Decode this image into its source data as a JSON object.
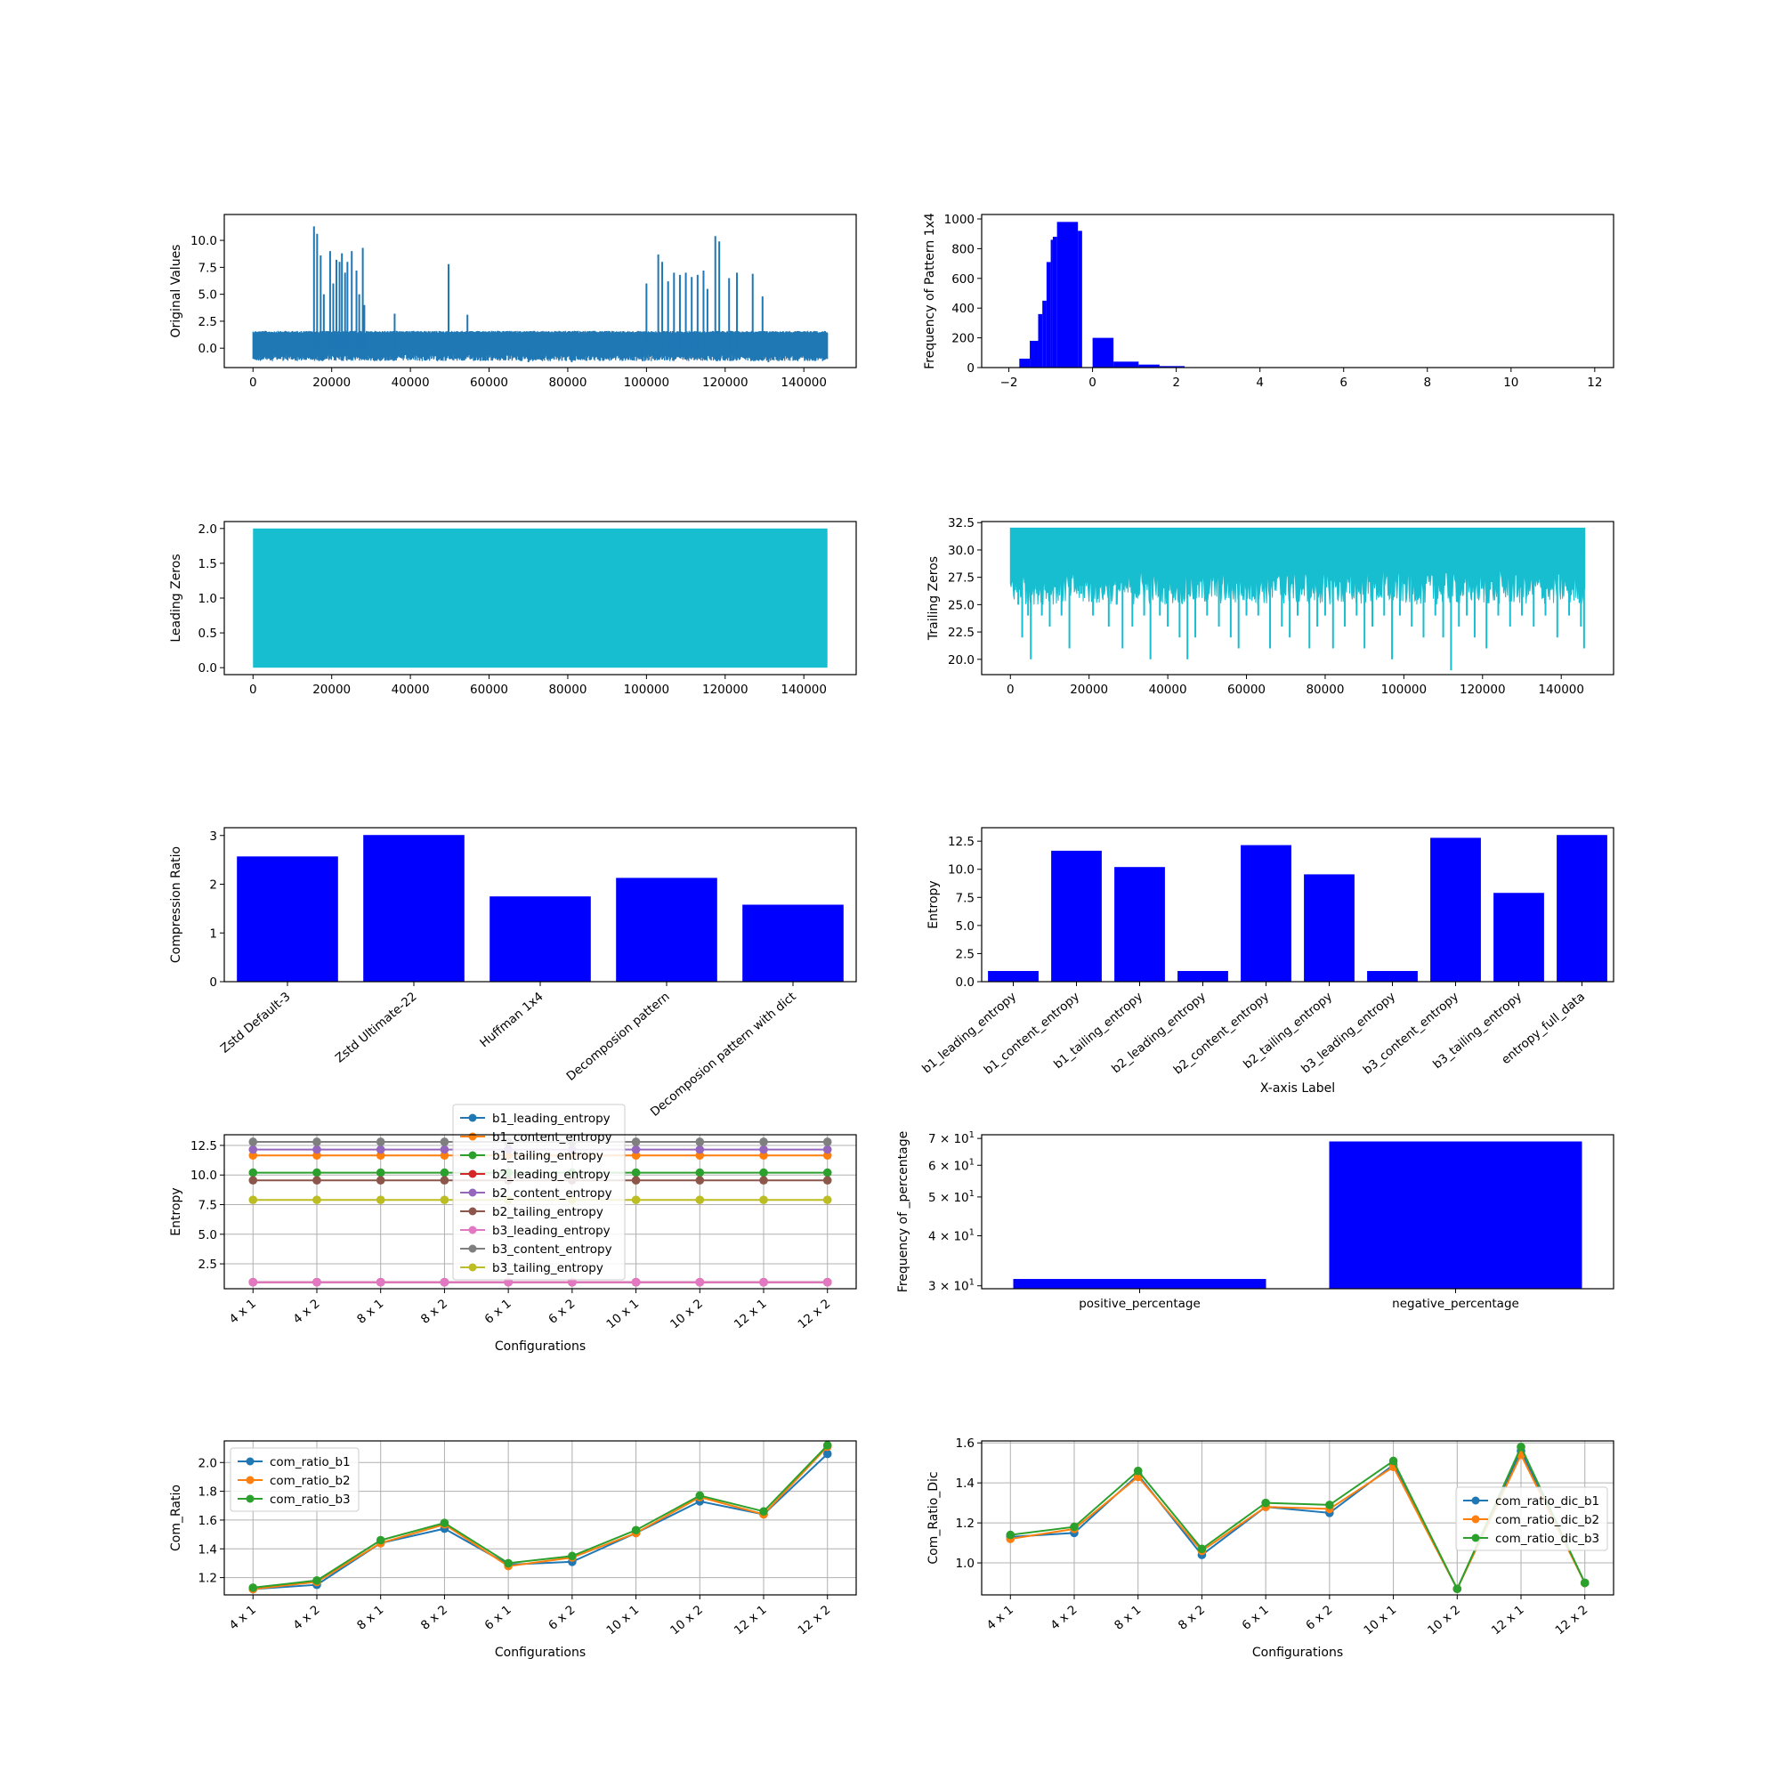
{
  "chart_data": [
    {
      "id": "orig",
      "type": "line",
      "ylabel": "Original Values",
      "xlabel": "",
      "xlim": [
        -7300,
        153300
      ],
      "ylim": [
        -1.8,
        12.4
      ],
      "xticks": [
        0,
        20000,
        40000,
        60000,
        80000,
        100000,
        120000,
        140000
      ],
      "yticks": [
        0.0,
        2.5,
        5.0,
        7.5,
        10.0
      ],
      "ytick_labels": [
        "0.0",
        "2.5",
        "5.0",
        "7.5",
        "10.0"
      ],
      "grid": false,
      "color": "#1f77b4",
      "n_points": 146000,
      "band": [
        -0.6,
        1.6
      ],
      "spikes": [
        [
          15500,
          11.3
        ],
        [
          16300,
          10.6
        ],
        [
          17200,
          8.6
        ],
        [
          18000,
          5.0
        ],
        [
          19600,
          9.0
        ],
        [
          20400,
          6.0
        ],
        [
          21200,
          8.2
        ],
        [
          22000,
          8.0
        ],
        [
          22600,
          8.8
        ],
        [
          23400,
          7.0
        ],
        [
          24000,
          8.0
        ],
        [
          25100,
          9.0
        ],
        [
          26300,
          7.2
        ],
        [
          27000,
          5.0
        ],
        [
          27900,
          9.3
        ],
        [
          28300,
          4.0
        ],
        [
          49700,
          7.8
        ],
        [
          36000,
          3.2
        ],
        [
          54500,
          3.1
        ],
        [
          100000,
          6.0
        ],
        [
          103000,
          8.7
        ],
        [
          104000,
          8.0
        ],
        [
          105500,
          6.2
        ],
        [
          107000,
          7.0
        ],
        [
          108500,
          6.8
        ],
        [
          110000,
          7.0
        ],
        [
          111500,
          6.6
        ],
        [
          113000,
          6.8
        ],
        [
          114500,
          7.2
        ],
        [
          115500,
          5.5
        ],
        [
          117500,
          10.4
        ],
        [
          118500,
          9.9
        ],
        [
          121000,
          6.5
        ],
        [
          123000,
          7.0
        ],
        [
          127000,
          6.9
        ],
        [
          129500,
          4.8
        ]
      ],
      "dips": [
        [
          70000,
          -1.3
        ],
        [
          81000,
          -1.3
        ],
        [
          99000,
          -1.2
        ],
        [
          118000,
          -1.2
        ],
        [
          131000,
          -1.3
        ],
        [
          145500,
          -1.0
        ]
      ]
    },
    {
      "id": "freq",
      "type": "bar",
      "ylabel": "Frequency of Pattern 1x4",
      "xlabel": "",
      "xlim": [
        -2.65,
        12.45
      ],
      "ylim": [
        0,
        1030
      ],
      "xticks": [
        -2,
        0,
        2,
        4,
        6,
        8,
        10,
        12
      ],
      "yticks": [
        0,
        200,
        400,
        600,
        800,
        1000
      ],
      "grid": false,
      "color": "#0000ff",
      "bins": [
        [
          -1.75,
          -1.5,
          60
        ],
        [
          -1.5,
          -1.3,
          180
        ],
        [
          -1.3,
          -1.2,
          360
        ],
        [
          -1.2,
          -1.1,
          450
        ],
        [
          -1.1,
          -1.0,
          710
        ],
        [
          -1.0,
          -0.95,
          860
        ],
        [
          -0.95,
          -0.85,
          880
        ],
        [
          -0.85,
          -0.35,
          980
        ],
        [
          -0.35,
          -0.25,
          920
        ],
        [
          -0.25,
          0.0,
          0
        ],
        [
          0.0,
          0.5,
          200
        ],
        [
          0.5,
          1.1,
          40
        ],
        [
          1.1,
          1.6,
          20
        ],
        [
          1.6,
          2.2,
          10
        ]
      ]
    },
    {
      "id": "lead",
      "type": "area",
      "ylabel": "Leading Zeros",
      "xlabel": "",
      "xlim": [
        -7300,
        153300
      ],
      "ylim": [
        -0.1,
        2.1
      ],
      "xticks": [
        0,
        20000,
        40000,
        60000,
        80000,
        100000,
        120000,
        140000
      ],
      "yticks": [
        0.0,
        0.5,
        1.0,
        1.5,
        2.0
      ],
      "ytick_labels": [
        "0.0",
        "0.5",
        "1.0",
        "1.5",
        "2.0"
      ],
      "grid": false,
      "color": "#17becf",
      "x_range": [
        0,
        146000
      ],
      "y_fill": [
        0,
        2
      ]
    },
    {
      "id": "trail",
      "type": "line",
      "ylabel": "Trailing Zeros",
      "xlabel": "",
      "xlim": [
        -7300,
        153300
      ],
      "ylim": [
        18.6,
        32.6
      ],
      "xticks": [
        0,
        20000,
        40000,
        60000,
        80000,
        100000,
        120000,
        140000
      ],
      "yticks": [
        20.0,
        22.5,
        25.0,
        27.5,
        30.0,
        32.5
      ],
      "ytick_labels": [
        "20.0",
        "22.5",
        "25.0",
        "27.5",
        "30.0",
        "32.5"
      ],
      "grid": false,
      "color": "#17becf",
      "top": 32,
      "dips": [
        [
          500,
          29
        ],
        [
          1000,
          27
        ],
        [
          2000,
          25
        ],
        [
          3000,
          22
        ],
        [
          4500,
          24
        ],
        [
          5200,
          20
        ],
        [
          8000,
          24
        ],
        [
          10000,
          23
        ],
        [
          13000,
          24
        ],
        [
          15000,
          21
        ],
        [
          18000,
          26
        ],
        [
          21000,
          24
        ],
        [
          25000,
          23
        ],
        [
          27000,
          25
        ],
        [
          28500,
          21
        ],
        [
          31000,
          23
        ],
        [
          34000,
          24
        ],
        [
          35600,
          20
        ],
        [
          38000,
          24
        ],
        [
          40000,
          23
        ],
        [
          43000,
          22
        ],
        [
          45000,
          20
        ],
        [
          47000,
          22
        ],
        [
          50000,
          24
        ],
        [
          53000,
          23
        ],
        [
          56000,
          22
        ],
        [
          58000,
          21
        ],
        [
          60000,
          24
        ],
        [
          63000,
          24
        ],
        [
          66000,
          21
        ],
        [
          69000,
          23
        ],
        [
          71000,
          22
        ],
        [
          73000,
          24
        ],
        [
          76000,
          21
        ],
        [
          78000,
          23
        ],
        [
          80000,
          24
        ],
        [
          82000,
          21
        ],
        [
          85000,
          23
        ],
        [
          88000,
          24
        ],
        [
          90000,
          21
        ],
        [
          92000,
          23
        ],
        [
          95000,
          24
        ],
        [
          97000,
          20
        ],
        [
          99000,
          24
        ],
        [
          102000,
          23
        ],
        [
          105000,
          22
        ],
        [
          108000,
          24
        ],
        [
          110000,
          22
        ],
        [
          112000,
          19
        ],
        [
          114000,
          23
        ],
        [
          116000,
          24
        ],
        [
          118000,
          22
        ],
        [
          121000,
          21
        ],
        [
          124000,
          24
        ],
        [
          127000,
          23
        ],
        [
          130000,
          24
        ],
        [
          133000,
          23
        ],
        [
          136000,
          24
        ],
        [
          139000,
          22
        ],
        [
          142000,
          24
        ],
        [
          145000,
          23
        ],
        [
          145800,
          21
        ]
      ]
    },
    {
      "id": "comp",
      "type": "bar",
      "ylabel": "Compression Ratio",
      "xlabel": "",
      "categories": [
        "Zstd Default-3",
        "Zstd Ultimate-22",
        "Huffman 1x4",
        "Decomposion pattern",
        "Decomposion pattern with dict"
      ],
      "values": [
        2.57,
        3.01,
        1.75,
        2.13,
        1.58
      ],
      "ylim": [
        0,
        3.16
      ],
      "yticks": [
        0,
        1,
        2,
        3
      ],
      "grid": false,
      "color": "#0000ff"
    },
    {
      "id": "entropy_bars",
      "type": "bar",
      "ylabel": "Entropy",
      "xlabel": "X-axis Label",
      "categories": [
        "b1_leading_entropy",
        "b1_content_entropy",
        "b1_tailing_entropy",
        "b2_leading_entropy",
        "b2_content_entropy",
        "b2_tailing_entropy",
        "b3_leading_entropy",
        "b3_content_entropy",
        "b3_tailing_entropy",
        "entropy_full_data"
      ],
      "values": [
        0.95,
        11.65,
        10.2,
        0.95,
        12.15,
        9.55,
        0.95,
        12.8,
        7.9,
        13.05
      ],
      "ylim": [
        0,
        13.7
      ],
      "yticks": [
        0.0,
        2.5,
        5.0,
        7.5,
        10.0,
        12.5
      ],
      "ytick_labels": [
        "0.0",
        "2.5",
        "5.0",
        "7.5",
        "10.0",
        "12.5"
      ],
      "grid": false,
      "color": "#0000ff"
    },
    {
      "id": "entropy_lines",
      "type": "line",
      "ylabel": "Entropy",
      "xlabel": "Configurations",
      "categories": [
        "4 x 1",
        "4 x 2",
        "8 x 1",
        "8 x 2",
        "6 x 1",
        "6 x 2",
        "10 x 1",
        "10 x 2",
        "12 x 1",
        "12 x 2"
      ],
      "ylim": [
        0.4,
        13.4
      ],
      "yticks": [
        2.5,
        5.0,
        7.5,
        10.0,
        12.5
      ],
      "ytick_labels": [
        "2.5",
        "5.0",
        "7.5",
        "10.0",
        "12.5"
      ],
      "grid": true,
      "legend": "upper center",
      "series": [
        {
          "name": "b1_leading_entropy",
          "color": "#1f77b4",
          "value": 0.95
        },
        {
          "name": "b1_content_entropy",
          "color": "#ff7f0e",
          "value": 11.65
        },
        {
          "name": "b1_tailing_entropy",
          "color": "#2ca02c",
          "value": 10.2
        },
        {
          "name": "b2_leading_entropy",
          "color": "#d62728",
          "value": 0.95
        },
        {
          "name": "b2_content_entropy",
          "color": "#9467bd",
          "value": 12.15
        },
        {
          "name": "b2_tailing_entropy",
          "color": "#8c564b",
          "value": 9.55
        },
        {
          "name": "b3_leading_entropy",
          "color": "#e377c2",
          "value": 0.95
        },
        {
          "name": "b3_content_entropy",
          "color": "#7f7f7f",
          "value": 12.8
        },
        {
          "name": "b3_tailing_entropy",
          "color": "#bcbd22",
          "value": 7.9
        }
      ]
    },
    {
      "id": "percent",
      "type": "bar",
      "ylabel": "Frequency of _percentage",
      "xlabel": "",
      "categories": [
        "positive_percentage",
        "negative_percentage"
      ],
      "values": [
        31.2,
        68.8
      ],
      "yscale": "log",
      "ylim": [
        29.5,
        71.5
      ],
      "yticks": [
        30,
        40,
        50,
        60,
        70
      ],
      "ytick_labels": [
        [
          "3",
          "1"
        ],
        [
          "4",
          "1"
        ],
        [
          "5",
          "1"
        ],
        [
          "6",
          "1"
        ],
        [
          "7",
          "1"
        ]
      ],
      "tick_base": "10",
      "grid": false,
      "color": "#0000ff"
    },
    {
      "id": "comratio",
      "type": "line",
      "ylabel": "Com_Ratio",
      "xlabel": "Configurations",
      "categories": [
        "4 x 1",
        "4 x 2",
        "8 x 1",
        "8 x 2",
        "6 x 1",
        "6 x 2",
        "10 x 1",
        "10 x 2",
        "12 x 1",
        "12 x 2"
      ],
      "ylim": [
        1.08,
        2.15
      ],
      "yticks": [
        1.2,
        1.4,
        1.6,
        1.8,
        2.0
      ],
      "ytick_labels": [
        "1.2",
        "1.4",
        "1.6",
        "1.8",
        "2.0"
      ],
      "grid": true,
      "legend": "upper left",
      "series": [
        {
          "name": "com_ratio_b1",
          "color": "#1f77b4",
          "values": [
            1.12,
            1.15,
            1.44,
            1.54,
            1.29,
            1.31,
            1.51,
            1.73,
            1.64,
            2.06
          ]
        },
        {
          "name": "com_ratio_b2",
          "color": "#ff7f0e",
          "values": [
            1.12,
            1.17,
            1.44,
            1.57,
            1.28,
            1.34,
            1.51,
            1.76,
            1.64,
            2.11
          ]
        },
        {
          "name": "com_ratio_b3",
          "color": "#2ca02c",
          "values": [
            1.13,
            1.18,
            1.46,
            1.58,
            1.3,
            1.35,
            1.53,
            1.77,
            1.66,
            2.12
          ]
        }
      ]
    },
    {
      "id": "comratio_dic",
      "type": "line",
      "ylabel": "Com_Ratio_Dic",
      "xlabel": "Configurations",
      "categories": [
        "4 x 1",
        "4 x 2",
        "8 x 1",
        "8 x 2",
        "6 x 1",
        "6 x 2",
        "10 x 1",
        "10 x 2",
        "12 x 1",
        "12 x 2"
      ],
      "ylim": [
        0.84,
        1.61
      ],
      "yticks": [
        1.0,
        1.2,
        1.4,
        1.6
      ],
      "ytick_labels": [
        "1.0",
        "1.2",
        "1.4",
        "1.6"
      ],
      "grid": true,
      "legend": "center right",
      "series": [
        {
          "name": "com_ratio_dic_b1",
          "color": "#1f77b4",
          "values": [
            1.13,
            1.15,
            1.44,
            1.04,
            1.28,
            1.25,
            1.49,
            0.87,
            1.56,
            0.9
          ]
        },
        {
          "name": "com_ratio_dic_b2",
          "color": "#ff7f0e",
          "values": [
            1.12,
            1.17,
            1.43,
            1.06,
            1.28,
            1.27,
            1.48,
            0.87,
            1.54,
            0.9
          ]
        },
        {
          "name": "com_ratio_dic_b3",
          "color": "#2ca02c",
          "values": [
            1.14,
            1.18,
            1.46,
            1.07,
            1.3,
            1.29,
            1.51,
            0.87,
            1.58,
            0.9
          ]
        }
      ]
    }
  ]
}
